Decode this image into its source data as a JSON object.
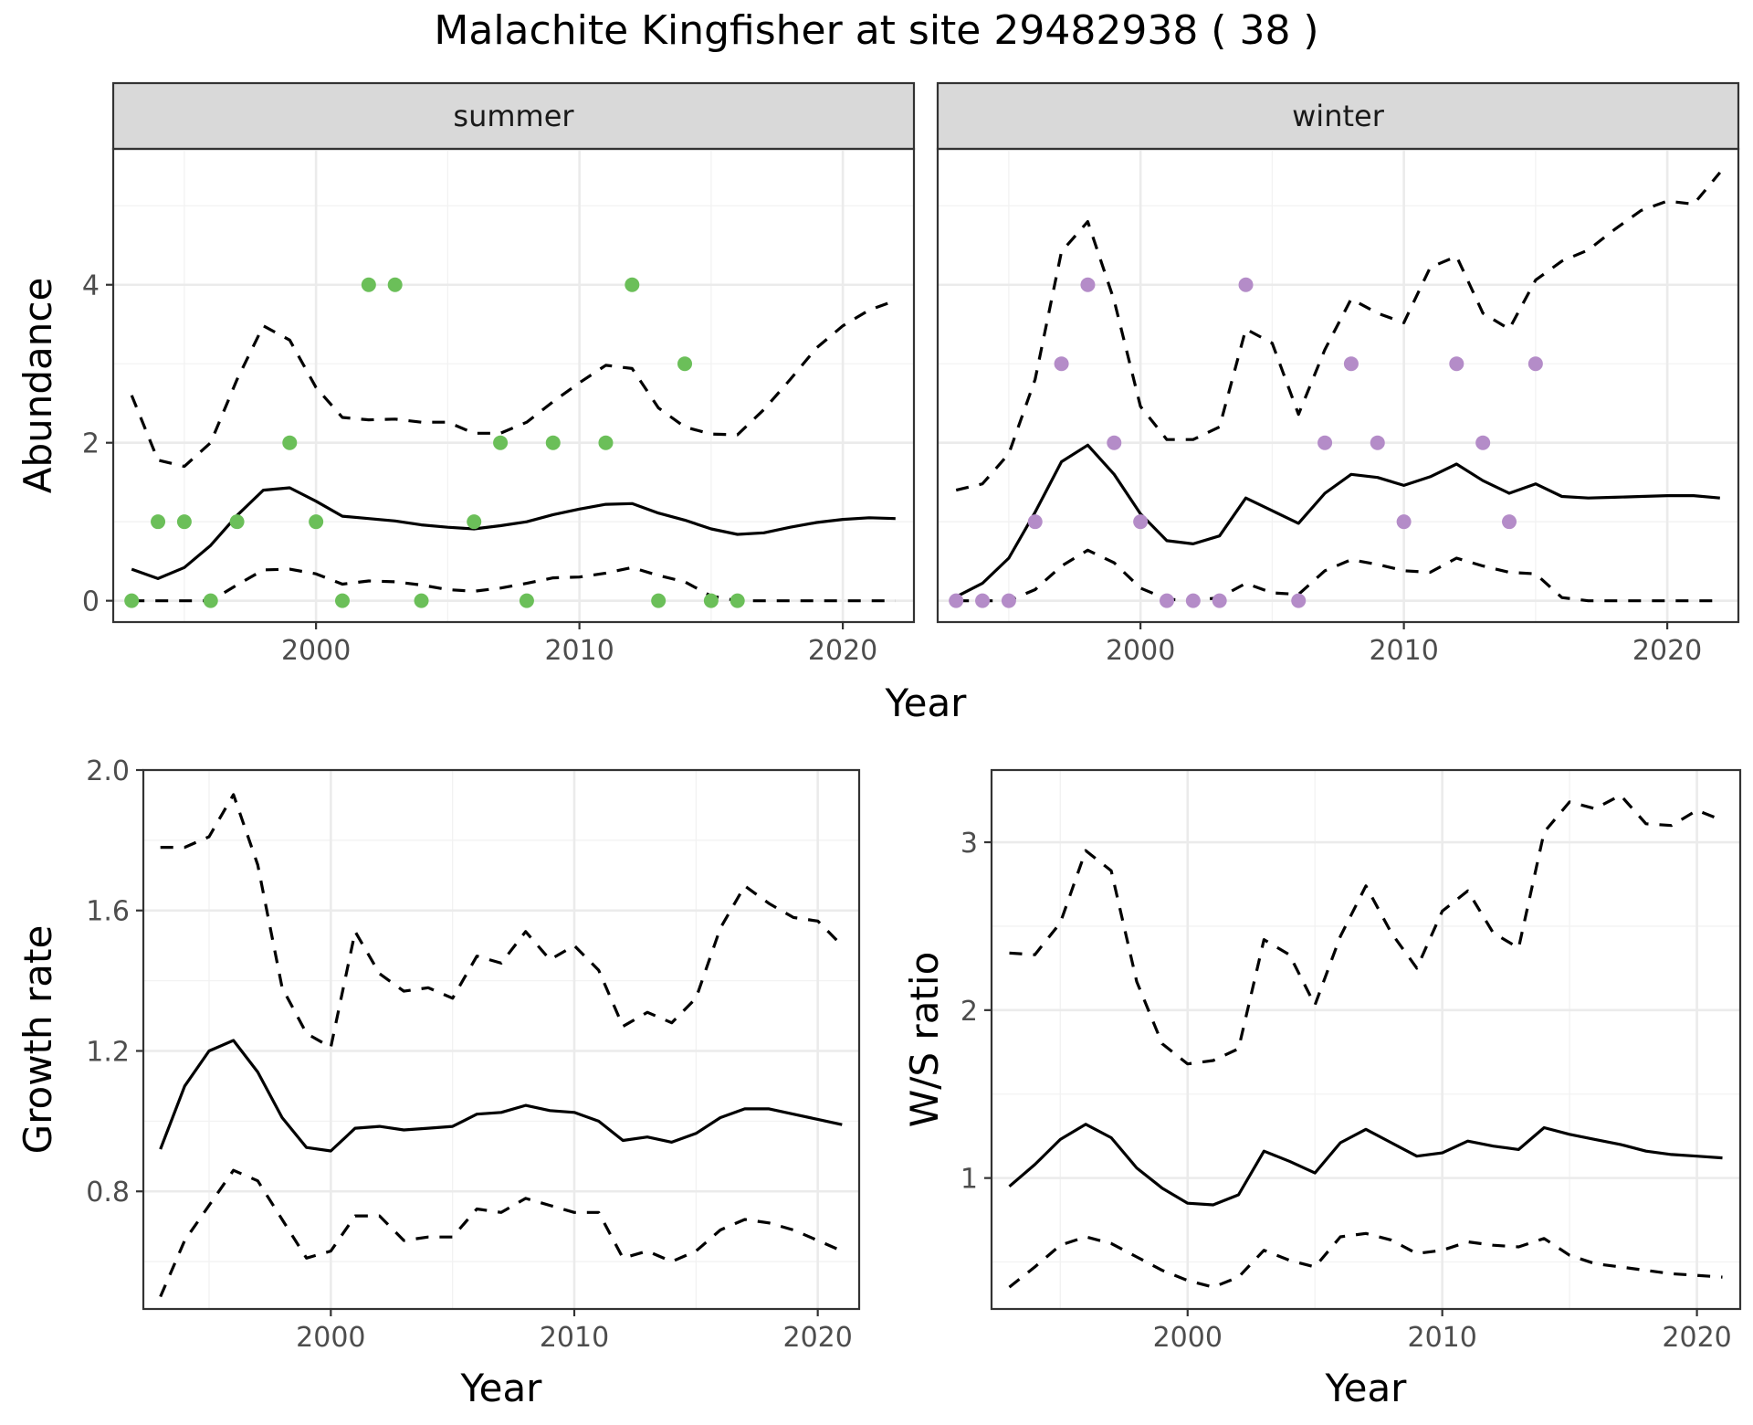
{
  "title": "Malachite Kingfisher at site 29482938 ( 38 )",
  "colors": {
    "summer_points": "#6bbf59",
    "winter_points": "#b48cc8",
    "lines": "#000000"
  },
  "chart_data": [
    {
      "type": "scatter",
      "panel": "summer",
      "facet_group": "top",
      "xlabel": "Year",
      "ylabel": "Abundance",
      "xlim": [
        1992.3,
        2022.7
      ],
      "ylim": [
        -0.27,
        5.72
      ],
      "x_ticks": [
        2000,
        2010,
        2020
      ],
      "y_ticks": [
        0,
        2,
        4
      ],
      "points": {
        "x": [
          1993,
          1994,
          1995,
          1996,
          1997,
          1999,
          2000,
          2001,
          2002,
          2003,
          2004,
          2006,
          2007,
          2008,
          2009,
          2011,
          2012,
          2013,
          2014,
          2015,
          2016
        ],
        "y": [
          0,
          1,
          1,
          0,
          1,
          2,
          1,
          0,
          4,
          4,
          0,
          1,
          2,
          0,
          2,
          2,
          4,
          0,
          3,
          0,
          0
        ]
      },
      "series": [
        {
          "role": "estimate",
          "x": [
            1993,
            1994,
            1995,
            1996,
            1997,
            1998,
            1999,
            2000,
            2001,
            2002,
            2003,
            2004,
            2005,
            2006,
            2007,
            2008,
            2009,
            2010,
            2011,
            2012,
            2013,
            2014,
            2015,
            2016,
            2017,
            2018,
            2019,
            2020,
            2021,
            2022
          ],
          "y": [
            0.4,
            0.28,
            0.42,
            0.7,
            1.08,
            1.4,
            1.43,
            1.26,
            1.07,
            1.04,
            1.01,
            0.96,
            0.93,
            0.91,
            0.95,
            1.0,
            1.09,
            1.16,
            1.22,
            1.23,
            1.11,
            1.02,
            0.91,
            0.84,
            0.86,
            0.93,
            0.99,
            1.03,
            1.05,
            1.04
          ]
        },
        {
          "role": "upper",
          "x": [
            1993,
            1994,
            1995,
            1996,
            1997,
            1998,
            1999,
            2000,
            2001,
            2002,
            2003,
            2004,
            2005,
            2006,
            2007,
            2008,
            2009,
            2010,
            2011,
            2012,
            2013,
            2014,
            2015,
            2016,
            2017,
            2018,
            2019,
            2020,
            2021,
            2022
          ],
          "y": [
            2.6,
            1.78,
            1.7,
            2.0,
            2.8,
            3.48,
            3.3,
            2.7,
            2.32,
            2.29,
            2.3,
            2.26,
            2.26,
            2.12,
            2.12,
            2.26,
            2.52,
            2.76,
            2.98,
            2.94,
            2.44,
            2.2,
            2.11,
            2.1,
            2.42,
            2.8,
            3.2,
            3.48,
            3.68,
            3.8
          ]
        },
        {
          "role": "lower",
          "x": [
            1993,
            1994,
            1995,
            1996,
            1997,
            1998,
            1999,
            2000,
            2001,
            2002,
            2003,
            2004,
            2005,
            2006,
            2007,
            2008,
            2009,
            2010,
            2011,
            2012,
            2013,
            2014,
            2015,
            2016,
            2017,
            2018,
            2019,
            2020,
            2021,
            2022
          ],
          "y": [
            0,
            0,
            0,
            0,
            0.2,
            0.39,
            0.4,
            0.34,
            0.21,
            0.25,
            0.24,
            0.2,
            0.14,
            0.12,
            0.16,
            0.22,
            0.29,
            0.3,
            0.35,
            0.42,
            0.32,
            0.24,
            0.06,
            0,
            0,
            0,
            0,
            0,
            0,
            0
          ]
        }
      ]
    },
    {
      "type": "scatter",
      "panel": "winter",
      "facet_group": "top",
      "xlabel": "Year",
      "ylabel": "Abundance",
      "xlim": [
        1992.3,
        2022.7
      ],
      "ylim": [
        -0.27,
        5.72
      ],
      "x_ticks": [
        2000,
        2010,
        2020
      ],
      "y_ticks": [
        0,
        2,
        4
      ],
      "points": {
        "x": [
          1993,
          1994,
          1995,
          1996,
          1997,
          1998,
          1999,
          2000,
          2001,
          2002,
          2003,
          2004,
          2006,
          2007,
          2008,
          2009,
          2010,
          2012,
          2013,
          2014,
          2015
        ],
        "y": [
          0,
          0,
          0,
          1,
          3,
          4,
          2,
          1,
          0,
          0,
          0,
          4,
          0,
          2,
          3,
          2,
          1,
          3,
          2,
          1,
          3
        ]
      },
      "series": [
        {
          "role": "estimate",
          "x": [
            1993,
            1994,
            1995,
            1996,
            1997,
            1998,
            1999,
            2000,
            2001,
            2002,
            2003,
            2004,
            2005,
            2006,
            2007,
            2008,
            2009,
            2010,
            2011,
            2012,
            2013,
            2014,
            2015,
            2016,
            2017,
            2018,
            2019,
            2020,
            2021,
            2022
          ],
          "y": [
            0.05,
            0.22,
            0.54,
            1.12,
            1.76,
            1.97,
            1.6,
            1.1,
            0.76,
            0.72,
            0.82,
            1.3,
            1.14,
            0.98,
            1.36,
            1.6,
            1.56,
            1.46,
            1.57,
            1.73,
            1.52,
            1.36,
            1.48,
            1.32,
            1.3,
            1.31,
            1.32,
            1.33,
            1.33,
            1.3
          ]
        },
        {
          "role": "upper",
          "x": [
            1993,
            1994,
            1995,
            1996,
            1997,
            1998,
            1999,
            2000,
            2001,
            2002,
            2003,
            2004,
            2005,
            2006,
            2007,
            2008,
            2009,
            2010,
            2011,
            2012,
            2013,
            2014,
            2015,
            2016,
            2017,
            2018,
            2019,
            2020,
            2021,
            2022
          ],
          "y": [
            1.4,
            1.48,
            1.86,
            2.8,
            4.42,
            4.8,
            3.8,
            2.46,
            2.04,
            2.04,
            2.2,
            3.44,
            3.26,
            2.36,
            3.18,
            3.82,
            3.64,
            3.52,
            4.22,
            4.36,
            3.64,
            3.44,
            4.06,
            4.3,
            4.44,
            4.7,
            4.94,
            5.06,
            5.02,
            5.42
          ]
        },
        {
          "role": "lower",
          "x": [
            1993,
            1994,
            1995,
            1996,
            1997,
            1998,
            1999,
            2000,
            2001,
            2002,
            2003,
            2004,
            2005,
            2006,
            2007,
            2008,
            2009,
            2010,
            2011,
            2012,
            2013,
            2014,
            2015,
            2016,
            2017,
            2018,
            2019,
            2020,
            2021,
            2022
          ],
          "y": [
            0,
            0,
            0,
            0.14,
            0.44,
            0.64,
            0.48,
            0.16,
            0.02,
            0,
            0.04,
            0.22,
            0.1,
            0.08,
            0.38,
            0.52,
            0.46,
            0.38,
            0.36,
            0.54,
            0.44,
            0.36,
            0.34,
            0.04,
            0,
            0,
            0,
            0,
            0,
            0
          ]
        }
      ]
    },
    {
      "type": "line",
      "panel": "growth",
      "xlabel": "Year",
      "ylabel": "Growth rate",
      "xlim": [
        1992.3,
        2021.7
      ],
      "ylim": [
        0.465,
        2.0
      ],
      "x_ticks": [
        2000,
        2010,
        2020
      ],
      "y_ticks": [
        0.8,
        1.2,
        1.6,
        2.0
      ],
      "y_tick_labels": [
        "0.8",
        "1.2",
        "1.6",
        "2.0"
      ],
      "series": [
        {
          "role": "estimate",
          "x": [
            1993,
            1994,
            1995,
            1996,
            1997,
            1998,
            1999,
            2000,
            2001,
            2002,
            2003,
            2004,
            2005,
            2006,
            2007,
            2008,
            2009,
            2010,
            2011,
            2012,
            2013,
            2014,
            2015,
            2016,
            2017,
            2018,
            2019,
            2020,
            2021
          ],
          "y": [
            0.92,
            1.1,
            1.2,
            1.23,
            1.14,
            1.01,
            0.925,
            0.915,
            0.98,
            0.985,
            0.975,
            0.98,
            0.985,
            1.02,
            1.025,
            1.045,
            1.03,
            1.025,
            1.0,
            0.945,
            0.955,
            0.94,
            0.965,
            1.01,
            1.035,
            1.035,
            1.02,
            1.005,
            0.99
          ]
        },
        {
          "role": "upper",
          "x": [
            1993,
            1994,
            1995,
            1996,
            1997,
            1998,
            1999,
            2000,
            2001,
            2002,
            2003,
            2004,
            2005,
            2006,
            2007,
            2008,
            2009,
            2010,
            2011,
            2012,
            2013,
            2014,
            2015,
            2016,
            2017,
            2018,
            2019,
            2020,
            2021
          ],
          "y": [
            1.78,
            1.78,
            1.81,
            1.93,
            1.73,
            1.38,
            1.25,
            1.21,
            1.54,
            1.42,
            1.37,
            1.38,
            1.35,
            1.47,
            1.45,
            1.54,
            1.46,
            1.5,
            1.43,
            1.27,
            1.31,
            1.28,
            1.35,
            1.55,
            1.67,
            1.62,
            1.58,
            1.57,
            1.5
          ]
        },
        {
          "role": "lower",
          "x": [
            1993,
            1994,
            1995,
            1996,
            1997,
            1998,
            1999,
            2000,
            2001,
            2002,
            2003,
            2004,
            2005,
            2006,
            2007,
            2008,
            2009,
            2010,
            2011,
            2012,
            2013,
            2014,
            2015,
            2016,
            2017,
            2018,
            2019,
            2020,
            2021
          ],
          "y": [
            0.5,
            0.66,
            0.76,
            0.86,
            0.83,
            0.72,
            0.61,
            0.63,
            0.73,
            0.73,
            0.66,
            0.67,
            0.67,
            0.75,
            0.74,
            0.78,
            0.76,
            0.74,
            0.74,
            0.61,
            0.63,
            0.6,
            0.63,
            0.69,
            0.72,
            0.71,
            0.69,
            0.66,
            0.63
          ]
        }
      ]
    },
    {
      "type": "line",
      "panel": "ws_ratio",
      "xlabel": "Year",
      "ylabel": "W/S ratio",
      "xlim": [
        1992.3,
        2021.7
      ],
      "ylim": [
        0.22,
        3.43
      ],
      "x_ticks": [
        2000,
        2010,
        2020
      ],
      "y_ticks": [
        1,
        2,
        3
      ],
      "series": [
        {
          "role": "estimate",
          "x": [
            1993,
            1994,
            1995,
            1996,
            1997,
            1998,
            1999,
            2000,
            2001,
            2002,
            2003,
            2004,
            2005,
            2006,
            2007,
            2008,
            2009,
            2010,
            2011,
            2012,
            2013,
            2014,
            2015,
            2016,
            2017,
            2018,
            2019,
            2020,
            2021
          ],
          "y": [
            0.95,
            1.08,
            1.23,
            1.32,
            1.24,
            1.06,
            0.94,
            0.85,
            0.84,
            0.9,
            1.16,
            1.1,
            1.03,
            1.21,
            1.29,
            1.21,
            1.13,
            1.15,
            1.22,
            1.19,
            1.17,
            1.3,
            1.26,
            1.23,
            1.2,
            1.16,
            1.14,
            1.13,
            1.12
          ]
        },
        {
          "role": "upper",
          "x": [
            1993,
            1994,
            1995,
            1996,
            1997,
            1998,
            1999,
            2000,
            2001,
            2002,
            2003,
            2004,
            2005,
            2006,
            2007,
            2008,
            2009,
            2010,
            2011,
            2012,
            2013,
            2014,
            2015,
            2016,
            2017,
            2018,
            2019,
            2020,
            2021
          ],
          "y": [
            2.34,
            2.33,
            2.52,
            2.95,
            2.83,
            2.17,
            1.8,
            1.68,
            1.7,
            1.77,
            2.42,
            2.33,
            2.03,
            2.44,
            2.74,
            2.46,
            2.25,
            2.59,
            2.71,
            2.46,
            2.37,
            3.06,
            3.24,
            3.2,
            3.28,
            3.11,
            3.1,
            3.19,
            3.13
          ]
        },
        {
          "role": "lower",
          "x": [
            1993,
            1994,
            1995,
            1996,
            1997,
            1998,
            1999,
            2000,
            2001,
            2002,
            2003,
            2004,
            2005,
            2006,
            2007,
            2008,
            2009,
            2010,
            2011,
            2012,
            2013,
            2014,
            2015,
            2016,
            2017,
            2018,
            2019,
            2020,
            2021
          ],
          "y": [
            0.35,
            0.47,
            0.6,
            0.65,
            0.61,
            0.53,
            0.45,
            0.39,
            0.35,
            0.41,
            0.57,
            0.51,
            0.47,
            0.65,
            0.67,
            0.63,
            0.55,
            0.57,
            0.62,
            0.6,
            0.59,
            0.64,
            0.54,
            0.49,
            0.47,
            0.45,
            0.43,
            0.42,
            0.41
          ]
        }
      ]
    }
  ]
}
